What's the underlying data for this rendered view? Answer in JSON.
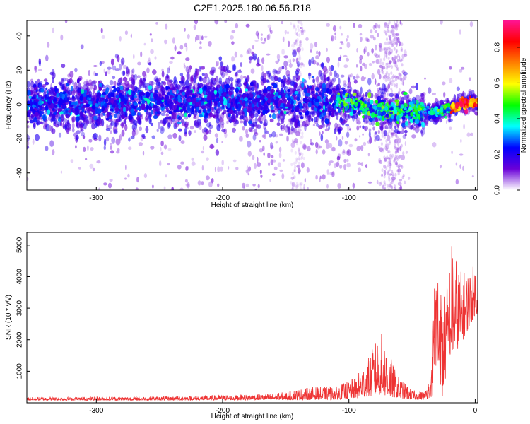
{
  "figure": {
    "title": "C2E1.2025.180.06.56.R18"
  },
  "chart_data": [
    {
      "type": "heatmap",
      "xlabel": "Height of straight line (km)",
      "ylabel": "Frequency (Hz)",
      "xlim": [
        -355,
        2
      ],
      "ylim": [
        -50,
        49
      ],
      "x_ticks": [
        "-300",
        "-200",
        "-100",
        "0"
      ],
      "y_ticks": [
        "-40",
        "-20",
        "0",
        "20",
        "40"
      ],
      "colorbar": {
        "label": "Normalized spectral amplitude",
        "ticks": [
          "0.0",
          "0.2",
          "0.4",
          "0.6",
          "0.8"
        ],
        "range": [
          0,
          0.95
        ],
        "colors": [
          "#ffffff",
          "#6a00d8",
          "#0000ff",
          "#00ffff",
          "#00ff00",
          "#ffff00",
          "#ff7f00",
          "#ff0000",
          "#ff1493"
        ]
      },
      "band_center_hz": [
        {
          "x": -355,
          "y": 0
        },
        {
          "x": -200,
          "y": 2
        },
        {
          "x": -140,
          "y": 3
        },
        {
          "x": -110,
          "y": 2
        },
        {
          "x": -100,
          "y": 1
        },
        {
          "x": -80,
          "y": -3
        },
        {
          "x": -60,
          "y": -5
        },
        {
          "x": -40,
          "y": -5
        },
        {
          "x": -28,
          "y": -4
        },
        {
          "x": -18,
          "y": -2
        },
        {
          "x": -10,
          "y": 0
        },
        {
          "x": 0,
          "y": 1
        }
      ],
      "grid": false
    },
    {
      "type": "line",
      "xlabel": "Height of straight line (km)",
      "ylabel": "SNR (10 * v/v)",
      "xlim": [
        -355,
        2
      ],
      "ylim": [
        0,
        5400
      ],
      "x_ticks": [
        "-300",
        "-200",
        "-100",
        "0"
      ],
      "y_ticks": [
        "1000",
        "2000",
        "3000",
        "4000",
        "5000"
      ],
      "series_color": "#ee3333",
      "envelope": [
        {
          "x": -355,
          "low": 80,
          "high": 180
        },
        {
          "x": -250,
          "low": 80,
          "high": 200
        },
        {
          "x": -160,
          "low": 90,
          "high": 280
        },
        {
          "x": -130,
          "low": 100,
          "high": 500
        },
        {
          "x": -110,
          "low": 100,
          "high": 520
        },
        {
          "x": -95,
          "low": 150,
          "high": 800
        },
        {
          "x": -85,
          "low": 200,
          "high": 1400
        },
        {
          "x": -75,
          "low": 250,
          "high": 2300
        },
        {
          "x": -70,
          "low": 200,
          "high": 1800
        },
        {
          "x": -62,
          "low": 150,
          "high": 900
        },
        {
          "x": -50,
          "low": 100,
          "high": 400
        },
        {
          "x": -40,
          "low": 100,
          "high": 350
        },
        {
          "x": -34,
          "low": 200,
          "high": 1200
        },
        {
          "x": -32,
          "low": 1000,
          "high": 5000
        },
        {
          "x": -28,
          "low": 800,
          "high": 4300
        },
        {
          "x": -26,
          "low": 50,
          "high": 3000
        },
        {
          "x": -22,
          "low": 1200,
          "high": 4000
        },
        {
          "x": -18,
          "low": 1500,
          "high": 5400
        },
        {
          "x": -12,
          "low": 1800,
          "high": 4200
        },
        {
          "x": -6,
          "low": 2300,
          "high": 4200
        },
        {
          "x": 0,
          "low": 2800,
          "high": 4400
        }
      ],
      "grid": false
    }
  ]
}
